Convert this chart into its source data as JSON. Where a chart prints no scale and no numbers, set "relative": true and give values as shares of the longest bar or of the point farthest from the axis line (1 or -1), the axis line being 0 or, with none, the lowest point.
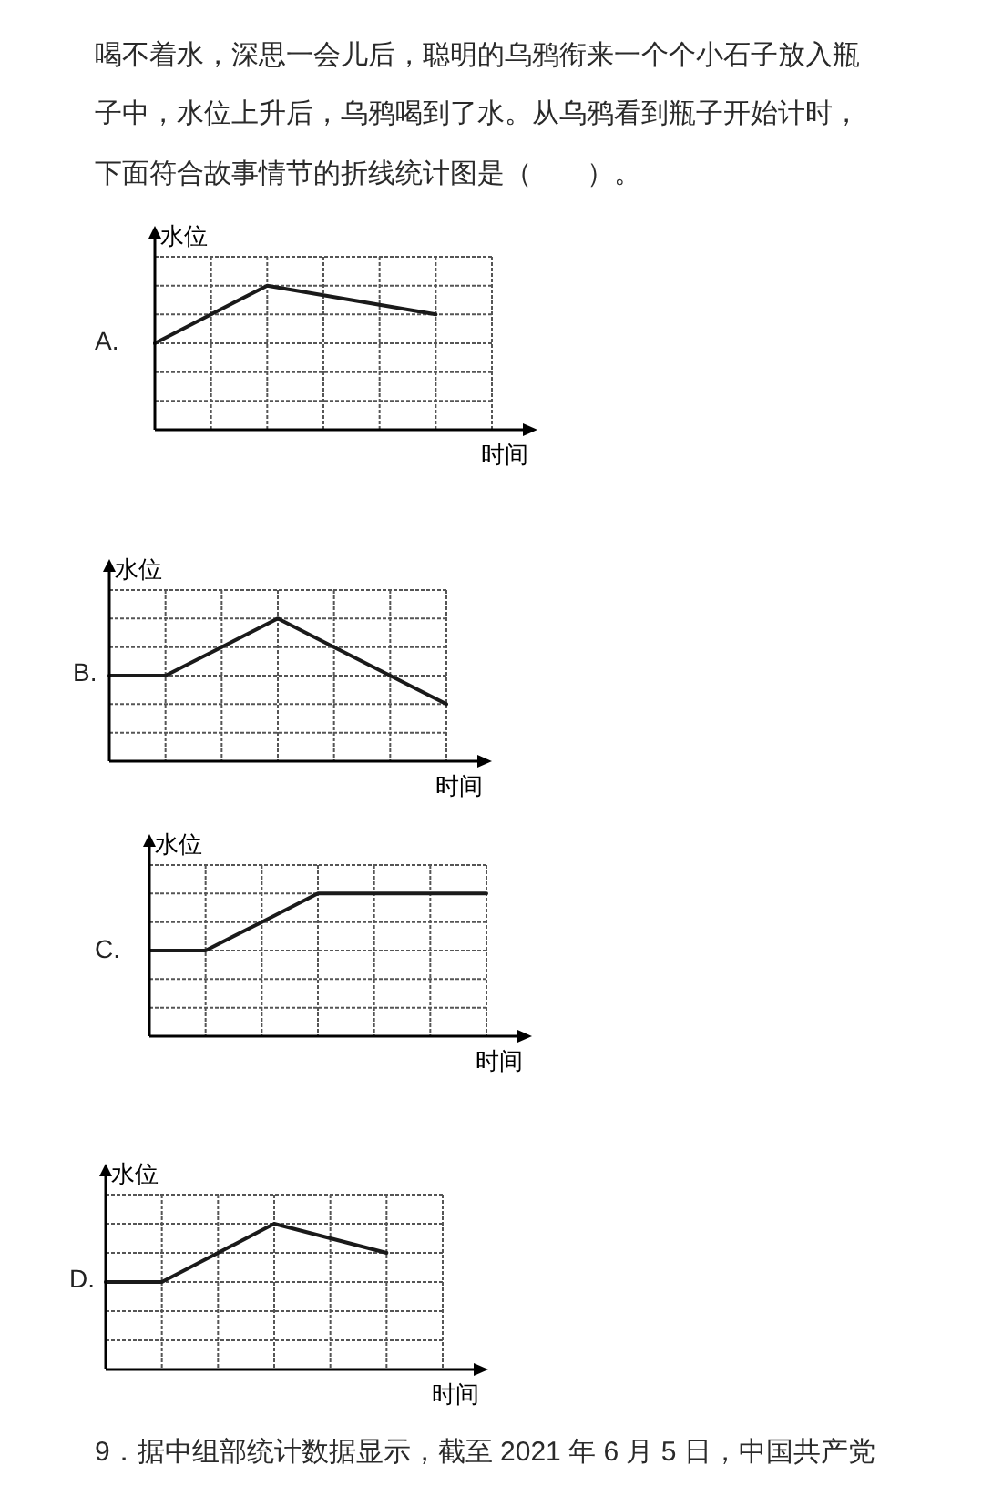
{
  "chart_data": [
    {
      "type": "line",
      "title": "A.",
      "xlabel": "时间",
      "ylabel": "水位",
      "relative": true,
      "grid": true,
      "annotations": [
        "喝不着水，深思一会儿后，聪明的乌鸦衔来一个个小石子放入瓶",
        "子中，水位上升后，乌鸦喝到了水。从乌鸦看到瓶子开始计时，",
        "下面符合故事情节的折线统计图是（　　）。"
      ],
      "categories": [
        null,
        null,
        null,
        null,
        null,
        null,
        null
      ],
      "series": [
        {
          "color": "#1a1a1a",
          "values": [
            0.6,
            0.8,
            1,
            0.933,
            0.867,
            0.8,
            null
          ]
        }
      ]
    },
    {
      "type": "line",
      "title": "B.",
      "xlabel": "时间",
      "ylabel": "水位",
      "relative": true,
      "grid": true,
      "categories": [
        null,
        null,
        null,
        null,
        null,
        null,
        null
      ],
      "series": [
        {
          "color": "#1a1a1a",
          "values": [
            0.6,
            0.6,
            0.8,
            1,
            0.8,
            0.6,
            0.4
          ]
        }
      ]
    },
    {
      "type": "line",
      "title": "C.",
      "xlabel": "时间",
      "ylabel": "水位",
      "relative": true,
      "grid": true,
      "categories": [
        null,
        null,
        null,
        null,
        null,
        null,
        null
      ],
      "series": [
        {
          "color": "#1a1a1a",
          "values": [
            0.6,
            0.6,
            0.8,
            1,
            1,
            1,
            1
          ]
        }
      ]
    },
    {
      "type": "line",
      "title": "D.",
      "xlabel": "时间",
      "ylabel": "水位",
      "relative": true,
      "grid": true,
      "annotations": [
        "9．据中组部统计数据显示，截至 2021 年 6 月 5 日，中国共产党"
      ],
      "categories": [
        null,
        null,
        null,
        null,
        null,
        null,
        null
      ],
      "series": [
        {
          "color": "#1a1a1a",
          "values": [
            0.6,
            0.6,
            0.8,
            1,
            0.9,
            0.8,
            null
          ]
        }
      ]
    }
  ]
}
